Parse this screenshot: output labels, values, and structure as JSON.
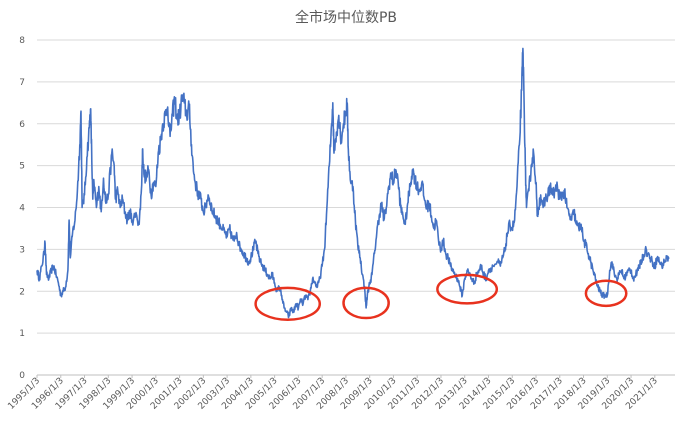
{
  "chart_data": {
    "type": "line",
    "title": "全市场中位数PB",
    "xlabel": "",
    "ylabel": "",
    "ylim": [
      0,
      8
    ],
    "yticks": [
      0,
      1,
      2,
      3,
      4,
      5,
      6,
      7,
      8
    ],
    "grid": true,
    "legend": "none",
    "x_tick_labels": [
      "1995/1/3",
      "1996/1/3",
      "1997/1/3",
      "1998/1/3",
      "1999/1/3",
      "2000/1/3",
      "2001/1/3",
      "2002/1/3",
      "2003/1/3",
      "2004/1/3",
      "2005/1/3",
      "2006/1/3",
      "2007/1/3",
      "2008/1/3",
      "2009/1/3",
      "2010/1/3",
      "2011/1/3",
      "2012/1/3",
      "2013/1/3",
      "2014/1/3",
      "2015/1/3",
      "2016/1/3",
      "2017/1/3",
      "2018/1/3",
      "2019/1/3",
      "2020/1/3",
      "2021/1/3"
    ],
    "series": [
      {
        "color": "#4472C4",
        "points": [
          [
            1995.0,
            2.5
          ],
          [
            1995.1,
            2.3
          ],
          [
            1995.2,
            2.6
          ],
          [
            1995.3,
            2.9
          ],
          [
            1995.33,
            3.2
          ],
          [
            1995.4,
            2.4
          ],
          [
            1995.5,
            2.3
          ],
          [
            1995.6,
            2.5
          ],
          [
            1995.7,
            2.6
          ],
          [
            1995.8,
            2.4
          ],
          [
            1995.9,
            2.2
          ],
          [
            1996.0,
            1.9
          ],
          [
            1996.1,
            2.0
          ],
          [
            1996.2,
            2.1
          ],
          [
            1996.3,
            2.5
          ],
          [
            1996.35,
            3.7
          ],
          [
            1996.4,
            2.8
          ],
          [
            1996.5,
            3.4
          ],
          [
            1996.6,
            3.7
          ],
          [
            1996.7,
            4.4
          ],
          [
            1996.8,
            5.5
          ],
          [
            1996.85,
            6.3
          ],
          [
            1996.9,
            4.0
          ],
          [
            1997.0,
            4.3
          ],
          [
            1997.1,
            5.2
          ],
          [
            1997.2,
            5.9
          ],
          [
            1997.25,
            6.35
          ],
          [
            1997.3,
            5.3
          ],
          [
            1997.35,
            4.2
          ],
          [
            1997.4,
            4.6
          ],
          [
            1997.5,
            4.0
          ],
          [
            1997.6,
            4.5
          ],
          [
            1997.7,
            3.9
          ],
          [
            1997.8,
            4.7
          ],
          [
            1997.9,
            4.1
          ],
          [
            1998.0,
            4.3
          ],
          [
            1998.15,
            5.3
          ],
          [
            1998.25,
            5.0
          ],
          [
            1998.3,
            4.2
          ],
          [
            1998.4,
            4.4
          ],
          [
            1998.5,
            4.0
          ],
          [
            1998.6,
            4.2
          ],
          [
            1998.7,
            3.9
          ],
          [
            1998.8,
            3.7
          ],
          [
            1998.9,
            3.9
          ],
          [
            1999.0,
            3.7
          ],
          [
            1999.2,
            3.8
          ],
          [
            1999.3,
            3.6
          ],
          [
            1999.4,
            4.5
          ],
          [
            1999.45,
            5.4
          ],
          [
            1999.5,
            4.8
          ],
          [
            1999.6,
            4.7
          ],
          [
            1999.7,
            4.9
          ],
          [
            1999.8,
            4.3
          ],
          [
            1999.9,
            4.6
          ],
          [
            2000.0,
            4.5
          ],
          [
            2000.1,
            5.3
          ],
          [
            2000.2,
            5.6
          ],
          [
            2000.3,
            6.0
          ],
          [
            2000.4,
            6.2
          ],
          [
            2000.5,
            6.4
          ],
          [
            2000.6,
            5.7
          ],
          [
            2000.7,
            6.2
          ],
          [
            2000.8,
            6.6
          ],
          [
            2000.9,
            6.1
          ],
          [
            2001.0,
            6.2
          ],
          [
            2001.1,
            6.6
          ],
          [
            2001.2,
            6.5
          ],
          [
            2001.3,
            6.2
          ],
          [
            2001.4,
            6.4
          ],
          [
            2001.5,
            5.5
          ],
          [
            2001.6,
            4.8
          ],
          [
            2001.7,
            4.5
          ],
          [
            2001.8,
            4.3
          ],
          [
            2001.9,
            4.2
          ],
          [
            2002.0,
            3.9
          ],
          [
            2002.1,
            4.0
          ],
          [
            2002.2,
            4.3
          ],
          [
            2002.3,
            4.1
          ],
          [
            2002.4,
            3.9
          ],
          [
            2002.5,
            3.8
          ],
          [
            2002.6,
            3.7
          ],
          [
            2002.7,
            3.6
          ],
          [
            2002.8,
            3.5
          ],
          [
            2002.9,
            3.4
          ],
          [
            2003.0,
            3.3
          ],
          [
            2003.1,
            3.5
          ],
          [
            2003.2,
            3.3
          ],
          [
            2003.3,
            3.2
          ],
          [
            2003.4,
            3.4
          ],
          [
            2003.5,
            3.1
          ],
          [
            2003.6,
            3.0
          ],
          [
            2003.7,
            2.9
          ],
          [
            2003.8,
            2.8
          ],
          [
            2003.9,
            2.7
          ],
          [
            2004.0,
            2.8
          ],
          [
            2004.1,
            3.0
          ],
          [
            2004.2,
            3.2
          ],
          [
            2004.3,
            2.9
          ],
          [
            2004.4,
            2.7
          ],
          [
            2004.5,
            2.6
          ],
          [
            2004.6,
            2.5
          ],
          [
            2004.7,
            2.4
          ],
          [
            2004.8,
            2.3
          ],
          [
            2004.9,
            2.4
          ],
          [
            2005.0,
            2.2
          ],
          [
            2005.1,
            2.0
          ],
          [
            2005.2,
            2.1
          ],
          [
            2005.3,
            1.9
          ],
          [
            2005.4,
            1.6
          ],
          [
            2005.5,
            1.5
          ],
          [
            2005.6,
            1.4
          ],
          [
            2005.7,
            1.6
          ],
          [
            2005.8,
            1.5
          ],
          [
            2005.9,
            1.7
          ],
          [
            2006.0,
            1.6
          ],
          [
            2006.1,
            1.8
          ],
          [
            2006.2,
            1.7
          ],
          [
            2006.3,
            1.9
          ],
          [
            2006.4,
            1.8
          ],
          [
            2006.5,
            2.0
          ],
          [
            2006.6,
            2.3
          ],
          [
            2006.7,
            2.2
          ],
          [
            2006.8,
            2.1
          ],
          [
            2006.9,
            2.3
          ],
          [
            2007.0,
            2.6
          ],
          [
            2007.1,
            3.0
          ],
          [
            2007.2,
            4.0
          ],
          [
            2007.3,
            5.0
          ],
          [
            2007.4,
            6.0
          ],
          [
            2007.45,
            6.5
          ],
          [
            2007.5,
            5.3
          ],
          [
            2007.6,
            5.8
          ],
          [
            2007.7,
            6.2
          ],
          [
            2007.8,
            5.6
          ],
          [
            2007.9,
            6.0
          ],
          [
            2008.0,
            6.3
          ],
          [
            2008.05,
            6.5
          ],
          [
            2008.1,
            5.4
          ],
          [
            2008.2,
            4.6
          ],
          [
            2008.3,
            4.5
          ],
          [
            2008.4,
            3.7
          ],
          [
            2008.5,
            3.1
          ],
          [
            2008.6,
            2.8
          ],
          [
            2008.7,
            2.4
          ],
          [
            2008.8,
            2.0
          ],
          [
            2008.85,
            1.6
          ],
          [
            2008.9,
            1.9
          ],
          [
            2009.0,
            2.2
          ],
          [
            2009.1,
            2.4
          ],
          [
            2009.2,
            2.9
          ],
          [
            2009.3,
            3.4
          ],
          [
            2009.4,
            3.8
          ],
          [
            2009.5,
            4.1
          ],
          [
            2009.6,
            3.7
          ],
          [
            2009.7,
            4.0
          ],
          [
            2009.8,
            4.5
          ],
          [
            2009.9,
            4.8
          ],
          [
            2010.0,
            4.6
          ],
          [
            2010.1,
            4.9
          ],
          [
            2010.2,
            4.6
          ],
          [
            2010.3,
            4.0
          ],
          [
            2010.4,
            3.8
          ],
          [
            2010.5,
            3.6
          ],
          [
            2010.6,
            4.1
          ],
          [
            2010.7,
            4.5
          ],
          [
            2010.8,
            4.9
          ],
          [
            2010.9,
            4.7
          ],
          [
            2011.0,
            4.5
          ],
          [
            2011.1,
            4.4
          ],
          [
            2011.2,
            4.6
          ],
          [
            2011.3,
            4.2
          ],
          [
            2011.4,
            4.0
          ],
          [
            2011.5,
            4.1
          ],
          [
            2011.6,
            3.8
          ],
          [
            2011.7,
            3.5
          ],
          [
            2011.8,
            3.7
          ],
          [
            2011.9,
            3.2
          ],
          [
            2012.0,
            3.0
          ],
          [
            2012.1,
            3.2
          ],
          [
            2012.2,
            2.9
          ],
          [
            2012.3,
            2.8
          ],
          [
            2012.4,
            2.6
          ],
          [
            2012.5,
            2.5
          ],
          [
            2012.6,
            2.4
          ],
          [
            2012.7,
            2.3
          ],
          [
            2012.8,
            2.1
          ],
          [
            2012.9,
            1.9
          ],
          [
            2013.0,
            2.3
          ],
          [
            2013.1,
            2.5
          ],
          [
            2013.2,
            2.4
          ],
          [
            2013.3,
            2.3
          ],
          [
            2013.4,
            2.2
          ],
          [
            2013.5,
            2.4
          ],
          [
            2013.6,
            2.5
          ],
          [
            2013.7,
            2.6
          ],
          [
            2013.8,
            2.4
          ],
          [
            2013.9,
            2.3
          ],
          [
            2014.0,
            2.5
          ],
          [
            2014.2,
            2.6
          ],
          [
            2014.4,
            2.7
          ],
          [
            2014.5,
            2.6
          ],
          [
            2014.6,
            2.8
          ],
          [
            2014.7,
            3.0
          ],
          [
            2014.8,
            3.4
          ],
          [
            2014.9,
            3.6
          ],
          [
            2015.0,
            3.5
          ],
          [
            2015.1,
            3.7
          ],
          [
            2015.2,
            4.5
          ],
          [
            2015.3,
            5.5
          ],
          [
            2015.4,
            6.8
          ],
          [
            2015.45,
            7.8
          ],
          [
            2015.5,
            6.5
          ],
          [
            2015.55,
            5.0
          ],
          [
            2015.6,
            4.0
          ],
          [
            2015.7,
            4.4
          ],
          [
            2015.8,
            5.0
          ],
          [
            2015.9,
            5.3
          ],
          [
            2016.0,
            4.6
          ],
          [
            2016.05,
            3.8
          ],
          [
            2016.1,
            4.0
          ],
          [
            2016.2,
            4.3
          ],
          [
            2016.3,
            4.0
          ],
          [
            2016.4,
            4.2
          ],
          [
            2016.5,
            4.3
          ],
          [
            2016.6,
            4.5
          ],
          [
            2016.7,
            4.3
          ],
          [
            2016.8,
            4.4
          ],
          [
            2016.9,
            4.5
          ],
          [
            2017.0,
            4.2
          ],
          [
            2017.1,
            4.3
          ],
          [
            2017.2,
            4.4
          ],
          [
            2017.3,
            4.0
          ],
          [
            2017.4,
            3.8
          ],
          [
            2017.5,
            3.7
          ],
          [
            2017.6,
            3.9
          ],
          [
            2017.7,
            3.6
          ],
          [
            2017.8,
            3.5
          ],
          [
            2017.9,
            3.6
          ],
          [
            2018.0,
            3.2
          ],
          [
            2018.1,
            3.1
          ],
          [
            2018.2,
            2.9
          ],
          [
            2018.3,
            2.7
          ],
          [
            2018.4,
            2.5
          ],
          [
            2018.5,
            2.3
          ],
          [
            2018.6,
            2.1
          ],
          [
            2018.7,
            2.0
          ],
          [
            2018.8,
            1.9
          ],
          [
            2018.9,
            1.9
          ],
          [
            2019.0,
            1.9
          ],
          [
            2019.1,
            2.5
          ],
          [
            2019.2,
            2.7
          ],
          [
            2019.3,
            2.4
          ],
          [
            2019.4,
            2.3
          ],
          [
            2019.5,
            2.4
          ],
          [
            2019.6,
            2.5
          ],
          [
            2019.7,
            2.3
          ],
          [
            2019.8,
            2.4
          ],
          [
            2019.9,
            2.5
          ],
          [
            2020.0,
            2.5
          ],
          [
            2020.1,
            2.3
          ],
          [
            2020.2,
            2.4
          ],
          [
            2020.3,
            2.5
          ],
          [
            2020.4,
            2.7
          ],
          [
            2020.5,
            2.8
          ],
          [
            2020.6,
            3.0
          ],
          [
            2020.7,
            2.9
          ],
          [
            2020.8,
            2.8
          ],
          [
            2020.9,
            2.7
          ],
          [
            2021.0,
            2.6
          ],
          [
            2021.1,
            2.8
          ],
          [
            2021.2,
            2.7
          ],
          [
            2021.3,
            2.6
          ],
          [
            2021.4,
            2.7
          ],
          [
            2021.5,
            2.8
          ],
          [
            2021.6,
            2.8
          ]
        ]
      }
    ],
    "annotations": [
      {
        "shape": "ellipse",
        "color": "#E8321E",
        "cx_year": 2005.55,
        "cy_value": 1.7,
        "rx_years": 1.35,
        "ry_value": 0.38
      },
      {
        "shape": "ellipse",
        "color": "#E8321E",
        "cx_year": 2008.85,
        "cy_value": 1.72,
        "rx_years": 0.95,
        "ry_value": 0.36
      },
      {
        "shape": "ellipse",
        "color": "#E8321E",
        "cx_year": 2013.1,
        "cy_value": 2.05,
        "rx_years": 1.25,
        "ry_value": 0.34
      },
      {
        "shape": "ellipse",
        "color": "#E8321E",
        "cx_year": 2018.95,
        "cy_value": 1.95,
        "rx_years": 0.85,
        "ry_value": 0.3
      }
    ]
  }
}
